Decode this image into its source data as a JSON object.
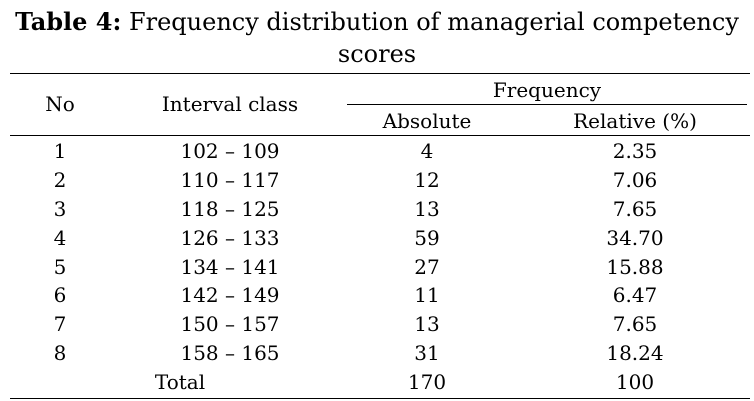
{
  "caption": {
    "label": "Table 4:",
    "text": "Frequency distribution of managerial competency scores"
  },
  "header": {
    "no": "No",
    "interval_class": "Interval class",
    "frequency": "Frequency",
    "absolute": "Absolute",
    "relative": "Relative (%)"
  },
  "rows": [
    {
      "no": "1",
      "interval": "102 – 109",
      "absolute": "4",
      "relative": "2.35"
    },
    {
      "no": "2",
      "interval": "110 – 117",
      "absolute": "12",
      "relative": "7.06"
    },
    {
      "no": "3",
      "interval": "118 – 125",
      "absolute": "13",
      "relative": "7.65"
    },
    {
      "no": "4",
      "interval": "126 – 133",
      "absolute": "59",
      "relative": "34.70"
    },
    {
      "no": "5",
      "interval": "134 – 141",
      "absolute": "27",
      "relative": "15.88"
    },
    {
      "no": "6",
      "interval": "142 – 149",
      "absolute": "11",
      "relative": "6.47"
    },
    {
      "no": "7",
      "interval": "150 – 157",
      "absolute": "13",
      "relative": "7.65"
    },
    {
      "no": "8",
      "interval": "158 – 165",
      "absolute": "31",
      "relative": "18.24"
    }
  ],
  "total": {
    "label": "Total",
    "absolute": "170",
    "relative": "100"
  }
}
